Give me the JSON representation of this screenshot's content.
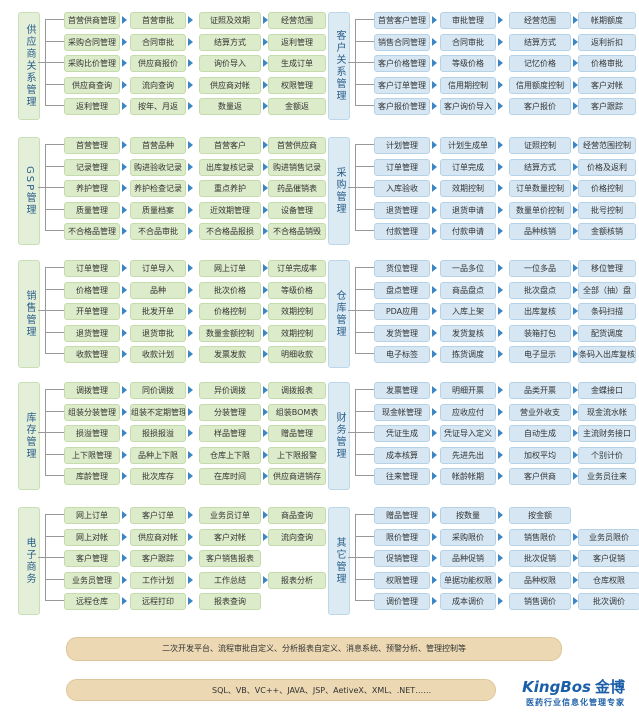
{
  "sections": [
    {
      "key": "s0",
      "label": "供应商关系管理",
      "theme": "green",
      "rows": [
        [
          "首营供商管理",
          "首营审批",
          "证照及效期",
          "经营范围"
        ],
        [
          "采购合同管理",
          "合同审批",
          "结算方式",
          "返利管理"
        ],
        [
          "采购比价管理",
          "供应商报价",
          "询价导入",
          "生成订单"
        ],
        [
          "供应商查询",
          "流向查询",
          "供应商对帐",
          "权限管理"
        ],
        [
          "返利管理",
          "按年、月返",
          "数量返",
          "金额返"
        ]
      ]
    },
    {
      "key": "s1",
      "label": "客户关系管理",
      "theme": "blue",
      "rows": [
        [
          "首营客户管理",
          "审批管理",
          "经营范围",
          "帐期额度"
        ],
        [
          "销售合同管理",
          "合同审批",
          "结算方式",
          "返利折扣"
        ],
        [
          "客户价格管理",
          "等级价格",
          "记忆价格",
          "价格审批"
        ],
        [
          "客户订单管理",
          "信用期控制",
          "信用额度控制",
          "客户对帐"
        ],
        [
          "客户报价管理",
          "客户询价导入",
          "客户报价",
          "客户跟踪"
        ]
      ]
    },
    {
      "key": "s2",
      "label": "GSP管理",
      "theme": "green",
      "rows": [
        [
          "首营管理",
          "首营品种",
          "首营客户",
          "首营供应商"
        ],
        [
          "记录管理",
          "购进验收记录",
          "出库复核记录",
          "购进销售记录"
        ],
        [
          "养护管理",
          "养护检查记录",
          "重点养护",
          "药品催销表"
        ],
        [
          "质量管理",
          "质量档案",
          "近效期管理",
          "设备管理"
        ],
        [
          "不合格品管理",
          "不合品审批",
          "不合格品报损",
          "不合格品销毁"
        ]
      ]
    },
    {
      "key": "s3",
      "label": "采购管理",
      "theme": "blue",
      "rows": [
        [
          "计划管理",
          "计划生成单",
          "证照控制",
          "经营范围控制"
        ],
        [
          "订单管理",
          "订单完成",
          "结算方式",
          "价格及返利"
        ],
        [
          "入库验收",
          "效期控制",
          "订单数量控制",
          "价格控制"
        ],
        [
          "退货管理",
          "退货申请",
          "数量单价控制",
          "批号控制"
        ],
        [
          "付款管理",
          "付款申请",
          "品种核销",
          "金额核销"
        ]
      ]
    },
    {
      "key": "s4",
      "label": "销售管理",
      "theme": "green",
      "rows": [
        [
          "订单管理",
          "订单导入",
          "网上订单",
          "订单完成率"
        ],
        [
          "价格管理",
          "品种",
          "批次价格",
          "等级价格"
        ],
        [
          "开单管理",
          "批发开单",
          "价格控制",
          "效期控制"
        ],
        [
          "退货管理",
          "退货审批",
          "数量金额控制",
          "效期控制"
        ],
        [
          "收款管理",
          "收款计划",
          "发票发款",
          "明细收款"
        ]
      ]
    },
    {
      "key": "s5",
      "label": "仓库管理",
      "theme": "blue",
      "rows": [
        [
          "货位管理",
          "一品多位",
          "一位多品",
          "移位管理"
        ],
        [
          "盘点管理",
          "商品盘点",
          "批次盘点",
          "全部（抽）盘"
        ],
        [
          "PDA应用",
          "入库上架",
          "出库复核",
          "条码扫描"
        ],
        [
          "发货管理",
          "发货复核",
          "装箱打包",
          "配货调度"
        ],
        [
          "电子标签",
          "拣货调度",
          "电子显示",
          "条码入出库复核"
        ]
      ]
    },
    {
      "key": "s6",
      "label": "库存管理",
      "theme": "green",
      "rows": [
        [
          "调拨管理",
          "同价调拨",
          "异价调拨",
          "调拨报表"
        ],
        [
          "组装分装管理",
          "组装不定期管理",
          "分装管理",
          "组装BOM表"
        ],
        [
          "损溢管理",
          "报损报溢",
          "样品管理",
          "赠品管理"
        ],
        [
          "上下限管理",
          "品种上下限",
          "仓库上下限",
          "上下限报警"
        ],
        [
          "库龄管理",
          "批次库存",
          "在库时间",
          "供应商进销存"
        ]
      ]
    },
    {
      "key": "s7",
      "label": "财务管理",
      "theme": "blue",
      "rows": [
        [
          "发票管理",
          "明细开票",
          "品类开票",
          "金蝶接口"
        ],
        [
          "现金帐管理",
          "应收应付",
          "营业外收支",
          "现金流水帐"
        ],
        [
          "凭证生成",
          "凭证导入定义",
          "自动生成",
          "主流财务接口"
        ],
        [
          "成本核算",
          "先进先出",
          "加权平均",
          "个别计价"
        ],
        [
          "往来管理",
          "帐龄帐期",
          "客户供商",
          "业务员往来"
        ]
      ]
    },
    {
      "key": "s8",
      "label": "电子商务",
      "theme": "green",
      "rows": [
        [
          "网上订单",
          "客户订单",
          "业务员订单",
          "商品查询"
        ],
        [
          "网上对帐",
          "供应商对帐",
          "客户对帐",
          "流向查询"
        ],
        [
          "客户管理",
          "客户跟踪",
          "客户销售报表"
        ],
        [
          "业务员管理",
          "工作计划",
          "工作总结",
          "报表分析"
        ],
        [
          "远程仓库",
          "远程打印",
          "报表查询"
        ]
      ]
    },
    {
      "key": "s9",
      "label": "其它管理",
      "theme": "blue",
      "rows": [
        [
          "赠品管理",
          "按数量",
          "按金额"
        ],
        [
          "限价管理",
          "采购限价",
          "销售限价",
          "业务员限价"
        ],
        [
          "促销管理",
          "品种促销",
          "批次促销",
          "客户促销"
        ],
        [
          "权限管理",
          "单据功能权限",
          "品种权限",
          "仓库权限"
        ],
        [
          "调价管理",
          "成本调价",
          "销售调价",
          "批次调价"
        ]
      ]
    }
  ],
  "banners": {
    "top": "二次开发平台、流程审批自定义、分析报表自定义、消息系统、预警分析、管理控制等",
    "bottom": "SQL、VB、VC++、JAVA、JSP、AetiveX、XML、.NET……"
  },
  "logo": {
    "brand": "KingBos",
    "brand_cn": "金博",
    "tagline": "医药行业信息化管理专家"
  },
  "colors": {
    "green_fill": "#dcebc9",
    "blue_fill": "#d6e7f3",
    "arrow": "#3d86c6",
    "banner": "#ecd9b4",
    "brand": "#1b5fa8"
  }
}
